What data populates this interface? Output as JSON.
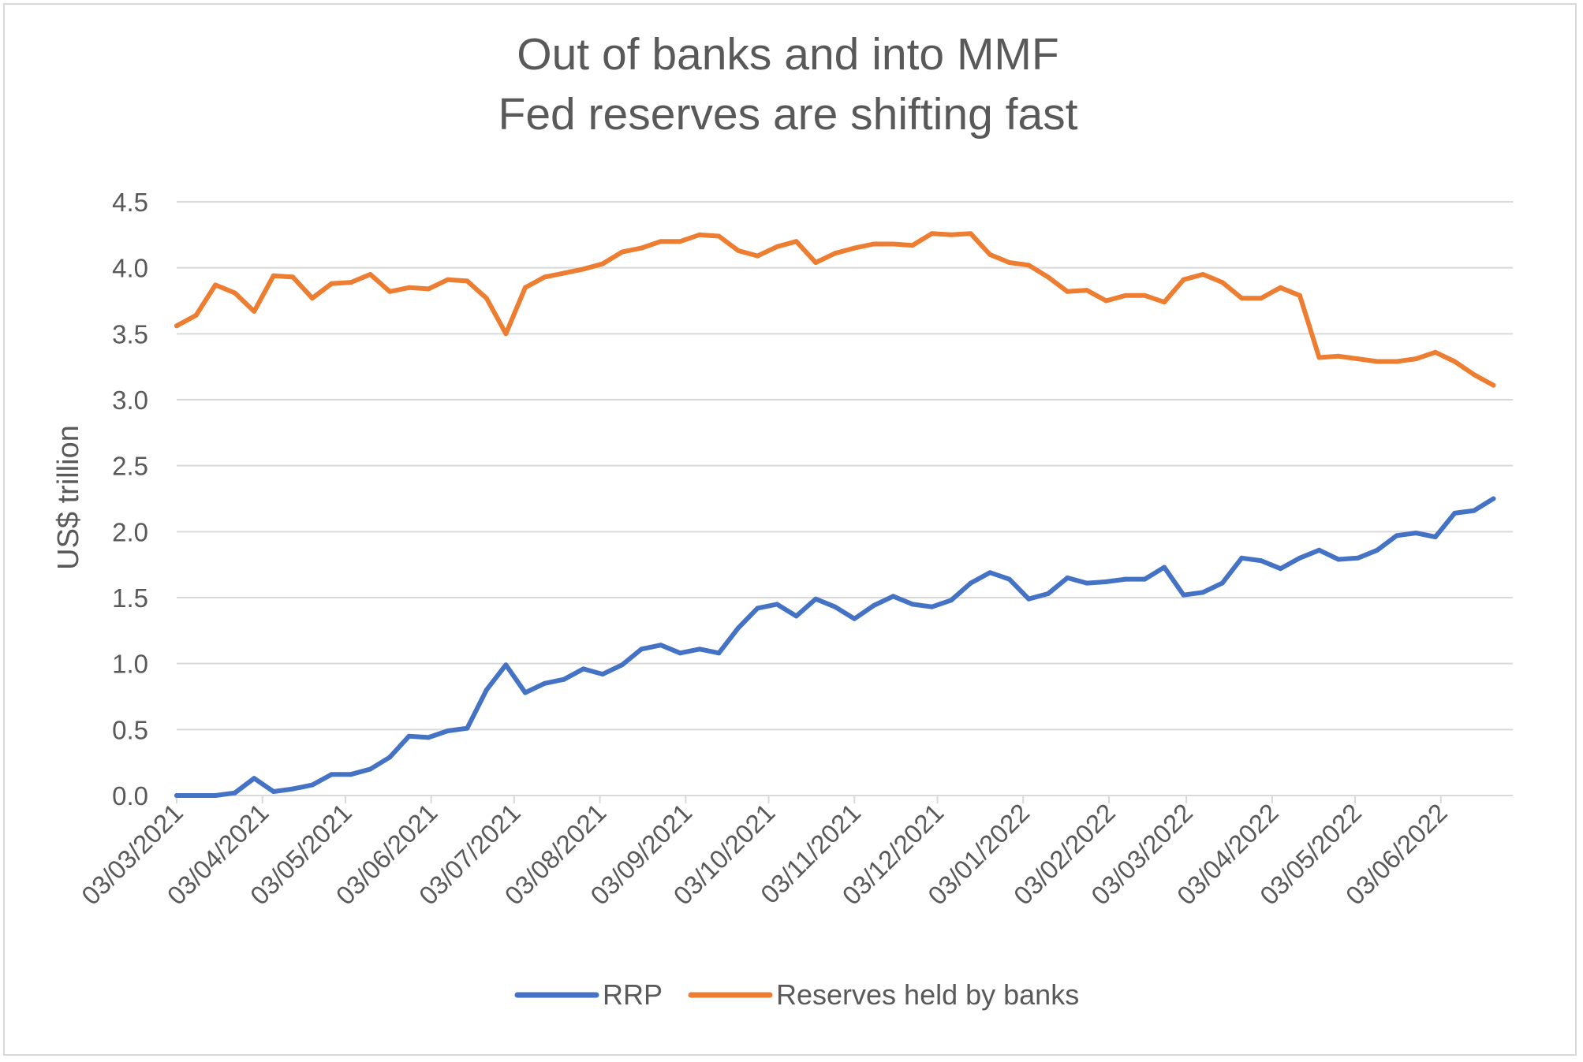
{
  "chart_data": {
    "type": "line",
    "title_lines": [
      "Out of banks and into MMF",
      "Fed reserves are shifting fast"
    ],
    "xlabel": "",
    "ylabel": "US$ trillion",
    "ylim": [
      0,
      4.5
    ],
    "y_ticks": [
      "0.0",
      "0.5",
      "1.0",
      "1.5",
      "2.0",
      "2.5",
      "3.0",
      "3.5",
      "4.0",
      "4.5"
    ],
    "x_tick_labels": [
      "03/03/2021",
      "03/04/2021",
      "03/05/2021",
      "03/06/2021",
      "03/07/2021",
      "03/08/2021",
      "03/09/2021",
      "03/10/2021",
      "03/11/2021",
      "03/12/2021",
      "03/01/2022",
      "03/02/2022",
      "03/03/2022",
      "03/04/2022",
      "03/05/2022",
      "03/06/2022"
    ],
    "x_start": "2021-03-03",
    "x_end": "2022-06-29",
    "x_interval_days": 7,
    "grid": true,
    "legend_position": "bottom",
    "colors": {
      "RRP": "#4472c4",
      "Reserves held by banks": "#ed7d31",
      "grid": "#d9d9d9",
      "text": "#595959"
    },
    "series": [
      {
        "name": "RRP",
        "color": "#4472c4",
        "values": [
          0.0,
          0.0,
          0.0,
          0.02,
          0.13,
          0.03,
          0.05,
          0.08,
          0.16,
          0.16,
          0.2,
          0.29,
          0.45,
          0.44,
          0.49,
          0.51,
          0.8,
          0.99,
          0.78,
          0.85,
          0.88,
          0.96,
          0.92,
          0.99,
          1.11,
          1.14,
          1.08,
          1.11,
          1.08,
          1.27,
          1.42,
          1.45,
          1.36,
          1.49,
          1.43,
          1.34,
          1.44,
          1.51,
          1.45,
          1.43,
          1.48,
          1.61,
          1.69,
          1.64,
          1.49,
          1.53,
          1.65,
          1.61,
          1.62,
          1.64,
          1.64,
          1.73,
          1.52,
          1.54,
          1.61,
          1.8,
          1.78,
          1.72,
          1.8,
          1.86,
          1.79,
          1.8,
          1.86,
          1.97,
          1.99,
          1.96,
          2.14,
          2.16,
          2.25
        ]
      },
      {
        "name": "Reserves held by banks",
        "color": "#ed7d31",
        "values": [
          3.56,
          3.64,
          3.87,
          3.81,
          3.67,
          3.94,
          3.93,
          3.77,
          3.88,
          3.89,
          3.95,
          3.82,
          3.85,
          3.84,
          3.91,
          3.9,
          3.77,
          3.5,
          3.85,
          3.93,
          3.96,
          3.99,
          4.03,
          4.12,
          4.15,
          4.2,
          4.2,
          4.25,
          4.24,
          4.13,
          4.09,
          4.16,
          4.2,
          4.04,
          4.11,
          4.15,
          4.18,
          4.18,
          4.17,
          4.26,
          4.25,
          4.26,
          4.1,
          4.04,
          4.02,
          3.93,
          3.82,
          3.83,
          3.75,
          3.79,
          3.79,
          3.74,
          3.91,
          3.95,
          3.89,
          3.77,
          3.77,
          3.85,
          3.79,
          3.32,
          3.33,
          3.31,
          3.29,
          3.29,
          3.31,
          3.36,
          3.29,
          3.19,
          3.11
        ]
      }
    ]
  }
}
